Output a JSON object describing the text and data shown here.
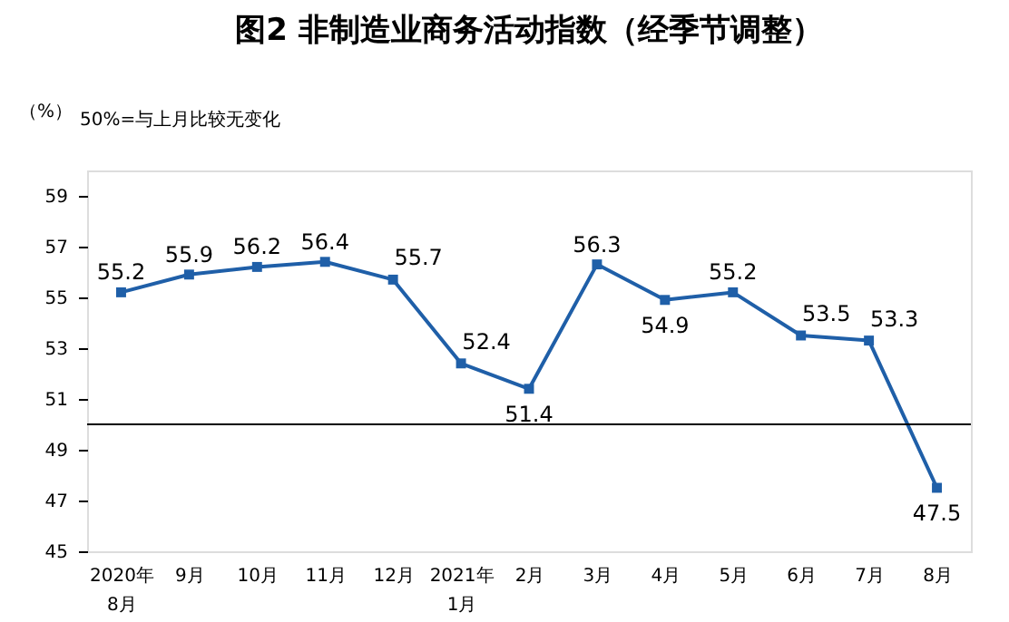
{
  "chart_data": {
    "type": "line",
    "title": "图2  非制造业商务活动指数（经季节调整）",
    "ylabel": "（%）",
    "annotations": [
      "50%=与上月比较无变化"
    ],
    "categories": [
      "2020年\n8月",
      "9月",
      "10月",
      "11月",
      "12月",
      "2021年\n1月",
      "2月",
      "3月",
      "4月",
      "5月",
      "6月",
      "7月",
      "8月"
    ],
    "series": [
      {
        "color": "#1f5fa8",
        "values": [
          55.2,
          55.9,
          56.2,
          56.4,
          55.7,
          52.4,
          51.4,
          56.3,
          54.9,
          55.2,
          53.5,
          53.3,
          47.5
        ]
      }
    ],
    "ylim": [
      45,
      60
    ],
    "yticks": [
      45,
      47,
      49,
      51,
      53,
      55,
      57,
      59
    ],
    "ref_lines": [
      {
        "axis": "y",
        "value": 50,
        "color": "#000000"
      }
    ],
    "data_labels": true,
    "marker": "square",
    "line_style": "solid",
    "grid": false
  }
}
